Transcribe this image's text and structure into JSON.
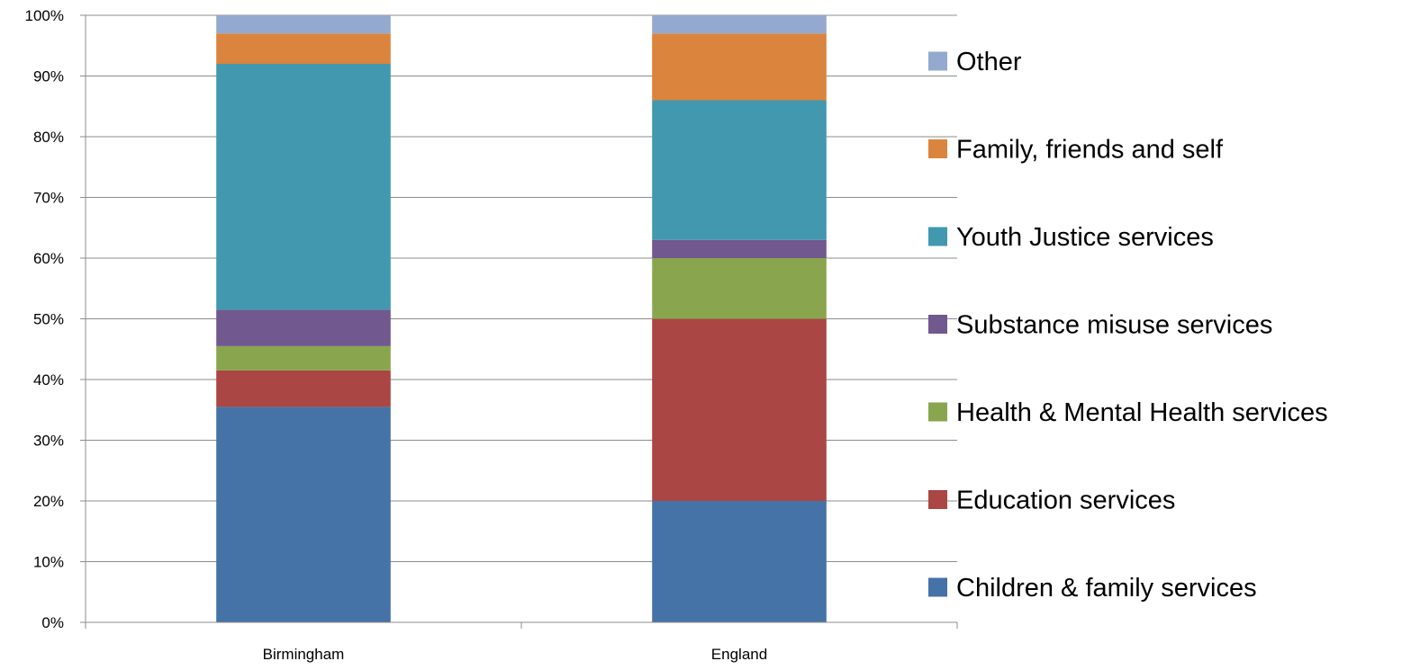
{
  "chart_data": {
    "type": "bar",
    "stacked": true,
    "categories": [
      "Birmingham",
      "England"
    ],
    "ylim": [
      0,
      100
    ],
    "y_ticks": [
      "0%",
      "10%",
      "20%",
      "30%",
      "40%",
      "50%",
      "60%",
      "70%",
      "80%",
      "90%",
      "100%"
    ],
    "grid": "horizontal",
    "legend_position": "right",
    "series": [
      {
        "name": "Children & family services",
        "color": "#4572A7",
        "values": [
          35.5,
          20
        ]
      },
      {
        "name": "Education services",
        "color": "#AA4643",
        "values": [
          6,
          30
        ]
      },
      {
        "name": "Health & Mental Health services",
        "color": "#89A54E",
        "values": [
          4,
          10
        ]
      },
      {
        "name": "Substance misuse services",
        "color": "#71588F",
        "values": [
          6,
          3
        ]
      },
      {
        "name": "Youth Justice services",
        "color": "#4198AF",
        "values": [
          40.5,
          23
        ]
      },
      {
        "name": "Family, friends and self",
        "color": "#DB843D",
        "values": [
          5,
          11
        ]
      },
      {
        "name": "Other",
        "color": "#93A9CF",
        "values": [
          3,
          3
        ]
      }
    ]
  }
}
